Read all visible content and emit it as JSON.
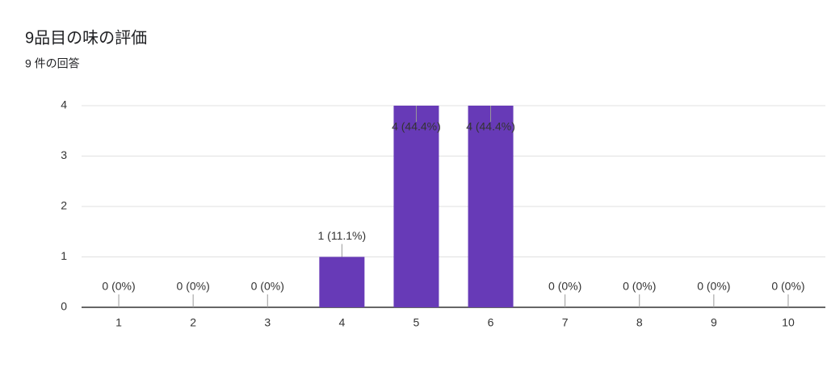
{
  "chart_data": {
    "type": "bar",
    "title": "9品目の味の評価",
    "subtitle": "9 件の回答",
    "categories": [
      "1",
      "2",
      "3",
      "4",
      "5",
      "6",
      "7",
      "8",
      "9",
      "10"
    ],
    "values": [
      0,
      0,
      0,
      1,
      4,
      4,
      0,
      0,
      0,
      0
    ],
    "value_labels": [
      "0 (0%)",
      "0 (0%)",
      "0 (0%)",
      "1 (11.1%)",
      "4 (44.4%)",
      "4 (44.4%)",
      "0 (0%)",
      "0 (0%)",
      "0 (0%)",
      "0 (0%)"
    ],
    "color": "#673ab7",
    "ylim": [
      0,
      4
    ],
    "yticks": [
      0,
      1,
      2,
      3,
      4
    ],
    "grid": true
  }
}
